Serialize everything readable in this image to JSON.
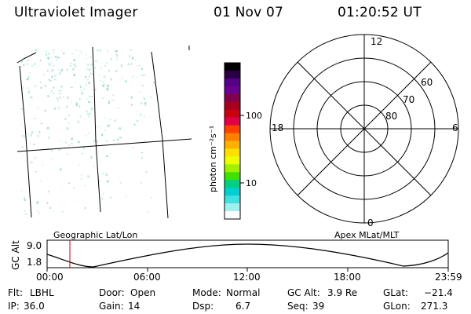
{
  "header": {
    "instrument": "Ultraviolet Imager",
    "date": "01 Nov 07",
    "time": "01:20:52 UT"
  },
  "colorbar": {
    "unit_label": "photon cm⁻²s⁻¹",
    "ticks": [
      "100",
      "10"
    ],
    "colors": [
      "#000000",
      "#2a0044",
      "#550088",
      "#6a0090",
      "#80004c",
      "#a50020",
      "#c80010",
      "#e0004a",
      "#ff4000",
      "#ff8000",
      "#ffb000",
      "#ffe000",
      "#eeff00",
      "#a0f000",
      "#40e000",
      "#00d080",
      "#00d0d0",
      "#40e0e0",
      "#a0f0f0",
      "#ffffff"
    ]
  },
  "polar_plot": {
    "mlt_labels": {
      "top": "12",
      "right": "6",
      "bottom": "0",
      "left": "18"
    },
    "lat_labels": [
      "60",
      "70",
      "80"
    ]
  },
  "altitude_plot": {
    "left_label": "Geographic Lat/Lon",
    "right_label": "Apex MLat/MLT",
    "y_axis_label": "GC Alt",
    "y_ticks": [
      "9.0",
      "1.8"
    ],
    "x_ticks": [
      "00:00",
      "06:00",
      "12:00",
      "18:00",
      "23:59"
    ],
    "current_marker_color": "#cc0000"
  },
  "status": {
    "row1": [
      {
        "label": "Flt:",
        "value": "LBHL"
      },
      {
        "label": "Door:",
        "value": "Open"
      },
      {
        "label": "Mode:",
        "value": "Normal"
      },
      {
        "label": "GC Alt:",
        "value": "3.9 Re"
      },
      {
        "label": "GLat:",
        "value": "−21.4"
      }
    ],
    "row2": [
      {
        "label": "IP:",
        "value": "36.0"
      },
      {
        "label": "Gain:",
        "value": "14"
      },
      {
        "label": "Dsp:",
        "value": "6.7"
      },
      {
        "label": "Seq:",
        "value": "39"
      },
      {
        "label": "GLon:",
        "value": "271.3"
      }
    ]
  }
}
